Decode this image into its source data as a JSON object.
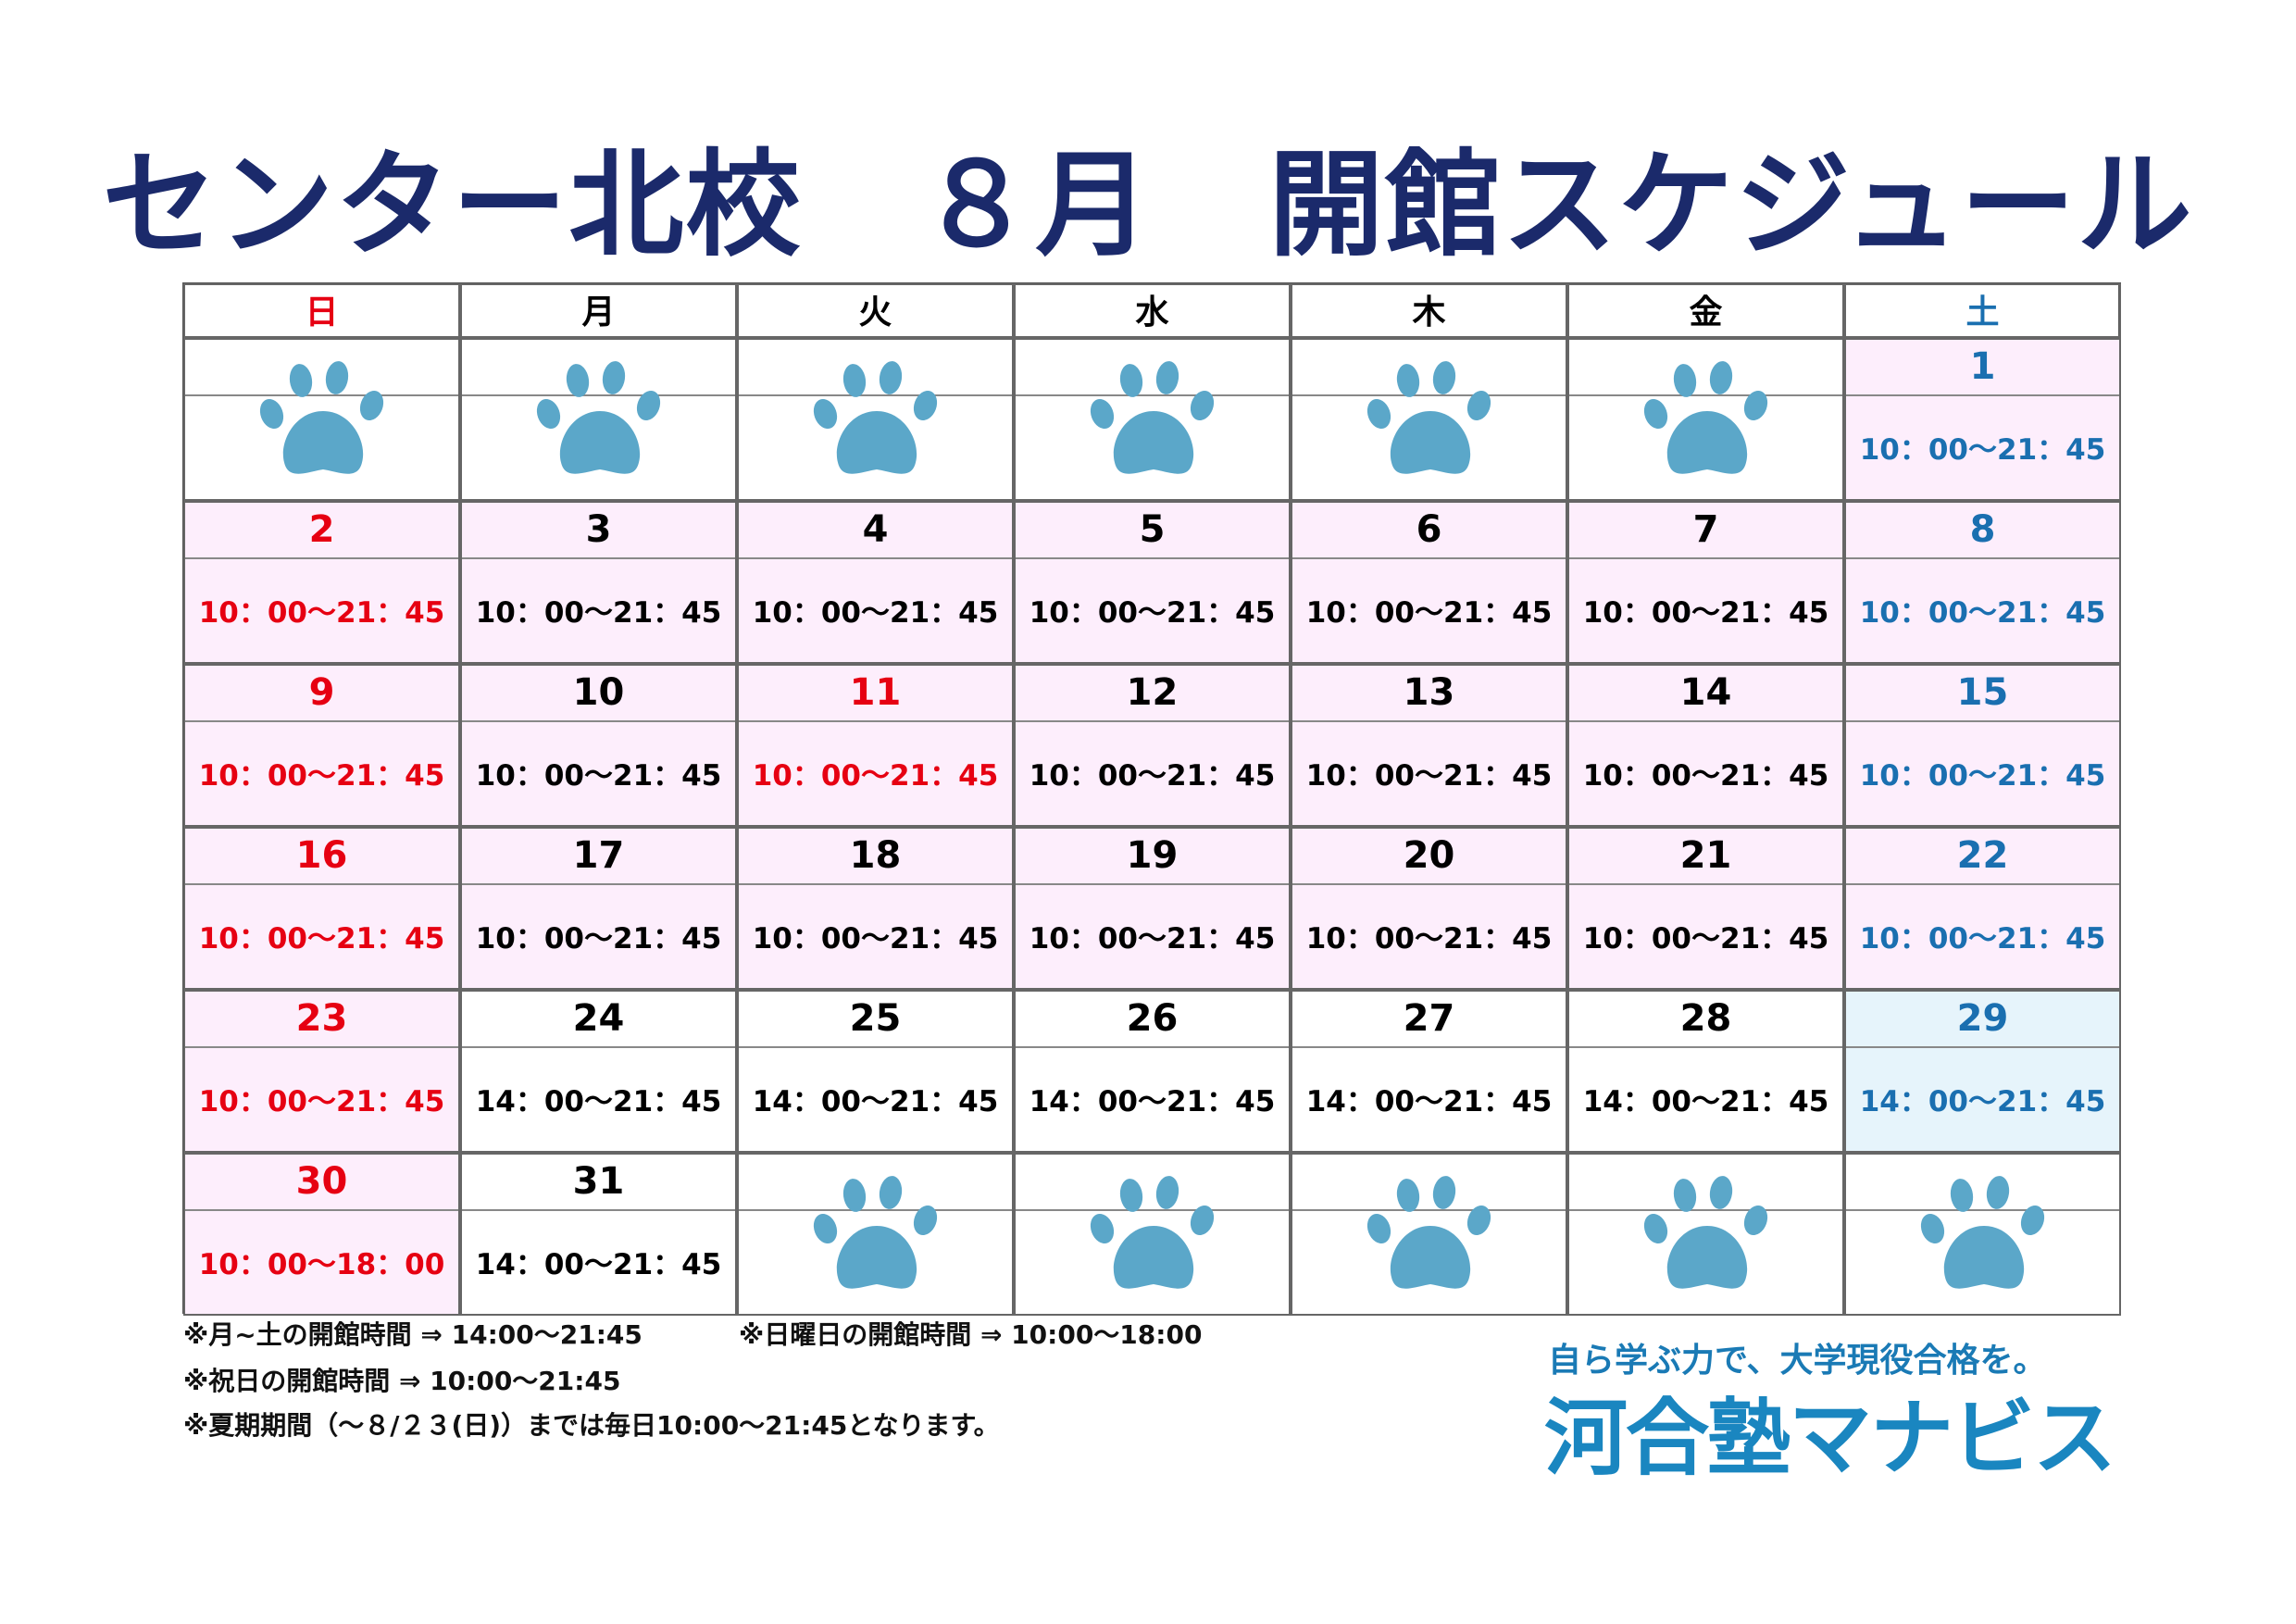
{
  "header": {
    "title": "センター北校　８月　開館スケジュール"
  },
  "weekdays": [
    {
      "label": "日",
      "color": "#e60012"
    },
    {
      "label": "月",
      "color": "#000000"
    },
    {
      "label": "火",
      "color": "#000000"
    },
    {
      "label": "水",
      "color": "#000000"
    },
    {
      "label": "木",
      "color": "#000000"
    },
    {
      "label": "金",
      "color": "#000000"
    },
    {
      "label": "土",
      "color": "#1a6fb0"
    }
  ],
  "weeks": [
    [
      null,
      null,
      null,
      null,
      null,
      null,
      {
        "day": 1,
        "hours": "10：00～21：45",
        "color": "#1a6fb0",
        "bg": "#fdeefc"
      }
    ],
    [
      {
        "day": 2,
        "hours": "10：00～21：45",
        "color": "#e60012",
        "bg": "#fdeefc"
      },
      {
        "day": 3,
        "hours": "10：00～21：45",
        "color": "#000000",
        "bg": "#fdeefc"
      },
      {
        "day": 4,
        "hours": "10：00～21：45",
        "color": "#000000",
        "bg": "#fdeefc"
      },
      {
        "day": 5,
        "hours": "10：00～21：45",
        "color": "#000000",
        "bg": "#fdeefc"
      },
      {
        "day": 6,
        "hours": "10：00～21：45",
        "color": "#000000",
        "bg": "#fdeefc"
      },
      {
        "day": 7,
        "hours": "10：00～21：45",
        "color": "#000000",
        "bg": "#fdeefc"
      },
      {
        "day": 8,
        "hours": "10：00～21：45",
        "color": "#1a6fb0",
        "bg": "#fdeefc"
      }
    ],
    [
      {
        "day": 9,
        "hours": "10：00～21：45",
        "color": "#e60012",
        "bg": "#fdeefc"
      },
      {
        "day": 10,
        "hours": "10：00～21：45",
        "color": "#000000",
        "bg": "#fdeefc"
      },
      {
        "day": 11,
        "hours": "10：00～21：45",
        "color": "#e60012",
        "bg": "#fdeefc"
      },
      {
        "day": 12,
        "hours": "10：00～21：45",
        "color": "#000000",
        "bg": "#fdeefc"
      },
      {
        "day": 13,
        "hours": "10：00～21：45",
        "color": "#000000",
        "bg": "#fdeefc"
      },
      {
        "day": 14,
        "hours": "10：00～21：45",
        "color": "#000000",
        "bg": "#fdeefc"
      },
      {
        "day": 15,
        "hours": "10：00～21：45",
        "color": "#1a6fb0",
        "bg": "#fdeefc"
      }
    ],
    [
      {
        "day": 16,
        "hours": "10：00～21：45",
        "color": "#e60012",
        "bg": "#fdeefc"
      },
      {
        "day": 17,
        "hours": "10：00～21：45",
        "color": "#000000",
        "bg": "#fdeefc"
      },
      {
        "day": 18,
        "hours": "10：00～21：45",
        "color": "#000000",
        "bg": "#fdeefc"
      },
      {
        "day": 19,
        "hours": "10：00～21：45",
        "color": "#000000",
        "bg": "#fdeefc"
      },
      {
        "day": 20,
        "hours": "10：00～21：45",
        "color": "#000000",
        "bg": "#fdeefc"
      },
      {
        "day": 21,
        "hours": "10：00～21：45",
        "color": "#000000",
        "bg": "#fdeefc"
      },
      {
        "day": 22,
        "hours": "10：00～21：45",
        "color": "#1a6fb0",
        "bg": "#fdeefc"
      }
    ],
    [
      {
        "day": 23,
        "hours": "10：00～21：45",
        "color": "#e60012",
        "bg": "#fdeefc"
      },
      {
        "day": 24,
        "hours": "14：00～21：45",
        "color": "#000000",
        "bg": "#ffffff"
      },
      {
        "day": 25,
        "hours": "14：00～21：45",
        "color": "#000000",
        "bg": "#ffffff"
      },
      {
        "day": 26,
        "hours": "14：00～21：45",
        "color": "#000000",
        "bg": "#ffffff"
      },
      {
        "day": 27,
        "hours": "14：00～21：45",
        "color": "#000000",
        "bg": "#ffffff"
      },
      {
        "day": 28,
        "hours": "14：00～21：45",
        "color": "#000000",
        "bg": "#ffffff"
      },
      {
        "day": 29,
        "hours": "14：00～21：45",
        "color": "#1a6fb0",
        "bg": "#e6f4fb"
      }
    ],
    [
      {
        "day": 30,
        "hours": "10：00～18：00",
        "color": "#e60012",
        "bg": "#fdeefc"
      },
      {
        "day": 31,
        "hours": "14：00～21：45",
        "color": "#000000",
        "bg": "#ffffff"
      },
      null,
      null,
      null,
      null,
      null
    ]
  ],
  "notes": {
    "weekday_hours": "※月~土の開館時間 ⇒ 14:00～21:45",
    "sunday_hours": "※日曜日の開館時間 ⇒ 10:00～18:00",
    "holiday_hours": "※祝日の開館時間 ⇒ 10:00～21:45",
    "summer": "※夏期期間（～８/２３(日)）までは毎日10:00～21:45となります。"
  },
  "logo": {
    "tagline": "自ら学ぶ力で、大学現役合格を。",
    "name": "河合塾マナビス"
  }
}
